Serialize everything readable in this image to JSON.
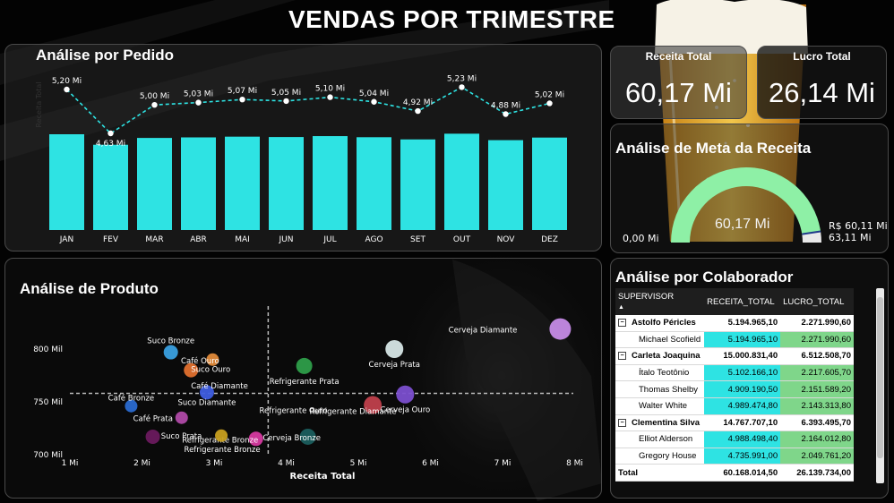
{
  "title": "VENDAS POR TRIMESTRE",
  "kpis": [
    {
      "label": "Receita Total",
      "value": "60,17 Mi"
    },
    {
      "label": "Lucro Total",
      "value": "26,14 Mi"
    }
  ],
  "pedido": {
    "title": "Análise por Pedido",
    "left_axis_label": "Receita Total"
  },
  "gauge": {
    "title": "Análise de Meta da Receita",
    "value_label": "60,17 Mi",
    "min_label": "0,00 Mi",
    "target_label": "R$ 60,11 Mi",
    "max_label": "63,11 Mi",
    "value": 60.17,
    "min": 0,
    "max": 63.11,
    "target": 60.11,
    "colors": {
      "fill": "#8ef0a6",
      "rest": "#e9e9e9",
      "target": "#1f3a8a"
    }
  },
  "produto": {
    "title": "Análise de Produto",
    "xlabel": "Receita Total"
  },
  "colab": {
    "title": "Análise por Colaborador",
    "headers": [
      "SUPERVISOR",
      "RECEITA_TOTAL",
      "LUCRO_TOTAL"
    ],
    "rows": [
      {
        "level": "group",
        "toggle": "−",
        "name": "Astolfo Péricles",
        "receita": "5.194.965,10",
        "lucro": "2.271.990,60"
      },
      {
        "level": "child",
        "name": "Michael Scofield",
        "receita": "5.194.965,10",
        "lucro": "2.271.990,60"
      },
      {
        "level": "group",
        "toggle": "−",
        "name": "Carleta Joaquina",
        "receita": "15.000.831,40",
        "lucro": "6.512.508,70"
      },
      {
        "level": "child",
        "name": "Ítalo Teotônio",
        "receita": "5.102.166,10",
        "lucro": "2.217.605,70"
      },
      {
        "level": "child",
        "name": "Thomas Shelby",
        "receita": "4.909.190,50",
        "lucro": "2.151.589,20"
      },
      {
        "level": "child",
        "name": "Walter White",
        "receita": "4.989.474,80",
        "lucro": "2.143.313,80"
      },
      {
        "level": "group",
        "toggle": "−",
        "name": "Clementina Silva",
        "receita": "14.767.707,10",
        "lucro": "6.393.495,70"
      },
      {
        "level": "child",
        "name": "Elliot Alderson",
        "receita": "4.988.498,40",
        "lucro": "2.164.012,80"
      },
      {
        "level": "child",
        "name": "Gregory House",
        "receita": "4.735.991,00",
        "lucro": "2.049.761,20"
      }
    ],
    "total": {
      "name": "Total",
      "receita": "60.168.014,50",
      "lucro": "26.139.734,00"
    },
    "colors": {
      "receita_bg": "#2ee3e3",
      "lucro_bg": "#7fd68a"
    }
  },
  "chart_data": [
    {
      "type": "bar",
      "title": "Análise por Pedido",
      "categories": [
        "JAN",
        "FEV",
        "MAR",
        "ABR",
        "MAI",
        "JUN",
        "JUL",
        "AGO",
        "SET",
        "OUT",
        "NOV",
        "DEZ"
      ],
      "series": [
        {
          "type": "bar",
          "values": [
            5.2,
            4.63,
            5.0,
            5.03,
            5.07,
            5.05,
            5.1,
            5.04,
            4.92,
            5.23,
            4.88,
            5.02
          ],
          "color": "#2ee3e3"
        },
        {
          "type": "line",
          "values": [
            5.2,
            4.63,
            5.0,
            5.03,
            5.07,
            5.05,
            5.1,
            5.04,
            4.92,
            5.23,
            4.88,
            5.02
          ],
          "labels": [
            "5,20 Mi",
            "4,63 Mi",
            "5,00 Mi",
            "5,03 Mi",
            "5,07 Mi",
            "5,05 Mi",
            "5,10 Mi",
            "5,04 Mi",
            "4,92 Mi",
            "5,23 Mi",
            "4,88 Mi",
            "5,02 Mi"
          ],
          "color": "#2ee3e3",
          "style": "dashed"
        }
      ],
      "ylim": [
        0,
        5.4
      ],
      "grid": false
    },
    {
      "type": "scatter",
      "title": "Análise de Produto",
      "xlabel": "Receita Total",
      "ylabel": "",
      "xlim": [
        1,
        8
      ],
      "ylim": [
        700,
        820
      ],
      "x_ticks": [
        "1 Mi",
        "2 Mi",
        "3 Mi",
        "4 Mi",
        "5 Mi",
        "6 Mi",
        "7 Mi",
        "8 Mi"
      ],
      "y_ticks": [
        {
          "v": 700,
          "label": "700 Mil"
        },
        {
          "v": 750,
          "label": "750 Mil"
        },
        {
          "v": 800,
          "label": "800 Mil"
        }
      ],
      "ref_lines": {
        "x": 3.75,
        "y": 758
      },
      "points": [
        {
          "name": "Cerveja Diamante",
          "x": 7.8,
          "y": 819,
          "r": 12,
          "color": "#c58be6"
        },
        {
          "name": "Cerveja Prata",
          "x": 5.5,
          "y": 800,
          "r": 10,
          "color": "#d6e6e6"
        },
        {
          "name": "Cerveja Ouro",
          "x": 5.65,
          "y": 757,
          "r": 10,
          "color": "#7b4fcf"
        },
        {
          "name": "Cerveja Bronze",
          "x": 4.3,
          "y": 717,
          "r": 9,
          "color": "#1b5e5e"
        },
        {
          "name": "Refrigerante Prata",
          "x": 4.25,
          "y": 784,
          "r": 9,
          "color": "#2e9e4a"
        },
        {
          "name": "Refrigerante Diamante",
          "x": 5.2,
          "y": 747,
          "r": 10,
          "color": "#c0404c"
        },
        {
          "name": "Refrigerante Ouro",
          "x": 4.1,
          "y": 743,
          "r": 0,
          "color": "#888888"
        },
        {
          "name": "Refrigerante Bronze",
          "x": 3.58,
          "y": 715,
          "r": 8,
          "color": "#d63aa0"
        },
        {
          "name": "Suco Bronze",
          "x": 2.4,
          "y": 797,
          "r": 8,
          "color": "#3aa0e0"
        },
        {
          "name": "Suco Ouro",
          "x": 2.68,
          "y": 780,
          "r": 8,
          "color": "#e0702e"
        },
        {
          "name": "Suco Diamante",
          "x": 2.9,
          "y": 759,
          "r": 8,
          "color": "#3f5ee0"
        },
        {
          "name": "Suco Prata",
          "x": 2.15,
          "y": 717,
          "r": 8,
          "color": "#6a1a5e"
        },
        {
          "name": "Café Ouro",
          "x": 2.98,
          "y": 790,
          "r": 7,
          "color": "#e08a3a"
        },
        {
          "name": "Café Diamante",
          "x": 3.05,
          "y": 766,
          "r": 0,
          "color": "#888888"
        },
        {
          "name": "Café Bronze",
          "x": 1.85,
          "y": 746,
          "r": 7,
          "color": "#2a6ad0"
        },
        {
          "name": "Café Prata",
          "x": 2.55,
          "y": 735,
          "r": 7,
          "color": "#b04aa8"
        },
        {
          "name": "Refrigerante Bronze",
          "x": 3.1,
          "y": 718,
          "r": 7,
          "color": "#c8a020"
        }
      ]
    }
  ]
}
